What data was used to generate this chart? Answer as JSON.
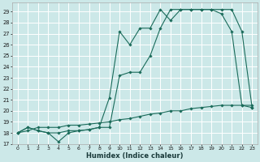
{
  "xlabel": "Humidex (Indice chaleur)",
  "bg_color": "#cce8e8",
  "grid_color": "#ffffff",
  "line_color": "#1a6b5a",
  "xlim": [
    -0.5,
    23.5
  ],
  "ylim": [
    17,
    29.8
  ],
  "xticks": [
    0,
    1,
    2,
    3,
    4,
    5,
    6,
    7,
    8,
    9,
    10,
    11,
    12,
    13,
    14,
    15,
    16,
    17,
    18,
    19,
    20,
    21,
    22,
    23
  ],
  "yticks": [
    17,
    18,
    19,
    20,
    21,
    22,
    23,
    24,
    25,
    26,
    27,
    28,
    29
  ],
  "line1_x": [
    0,
    1,
    2,
    3,
    4,
    5,
    6,
    7,
    8,
    9,
    10,
    11,
    12,
    13,
    14,
    15,
    16,
    17,
    18,
    19,
    20,
    21,
    22,
    23
  ],
  "line1_y": [
    18.0,
    18.5,
    18.2,
    18.0,
    17.2,
    18.0,
    18.2,
    18.3,
    18.5,
    21.2,
    27.2,
    26.0,
    27.5,
    27.5,
    29.2,
    28.2,
    29.2,
    29.2,
    29.2,
    29.2,
    28.8,
    27.2,
    20.5,
    20.3
  ],
  "line2_x": [
    0,
    1,
    2,
    3,
    4,
    5,
    6,
    7,
    8,
    9,
    10,
    11,
    12,
    13,
    14,
    15,
    16,
    17,
    18,
    19,
    20,
    21,
    22,
    23
  ],
  "line2_y": [
    18.0,
    18.5,
    18.2,
    18.0,
    18.0,
    18.2,
    18.2,
    18.3,
    18.5,
    18.5,
    23.2,
    23.5,
    23.5,
    25.0,
    27.5,
    29.2,
    29.2,
    29.2,
    29.2,
    29.2,
    29.2,
    29.2,
    27.2,
    20.3
  ],
  "line3_x": [
    0,
    1,
    2,
    3,
    4,
    5,
    6,
    7,
    8,
    9,
    10,
    11,
    12,
    13,
    14,
    15,
    16,
    17,
    18,
    19,
    20,
    21,
    22,
    23
  ],
  "line3_y": [
    18.0,
    18.2,
    18.5,
    18.5,
    18.5,
    18.7,
    18.7,
    18.8,
    18.9,
    19.0,
    19.2,
    19.3,
    19.5,
    19.7,
    19.8,
    20.0,
    20.0,
    20.2,
    20.3,
    20.4,
    20.5,
    20.5,
    20.5,
    20.5
  ]
}
